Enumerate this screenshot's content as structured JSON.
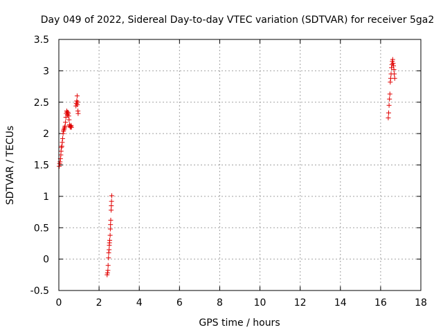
{
  "chart_data": {
    "type": "scatter",
    "title": "Day 049 of 2022, Sidereal Day-to-day VTEC variation (SDTVAR) for receiver 5ga2",
    "xlabel": "GPS time / hours",
    "ylabel": "SDTVAR / TECUs",
    "xlim": [
      0,
      18
    ],
    "ylim": [
      -0.5,
      3.5
    ],
    "xticks": [
      "0",
      "2",
      "4",
      "6",
      "8",
      "10",
      "12",
      "14",
      "16",
      "18"
    ],
    "yticks": [
      "-0.5",
      "0",
      "0.5",
      "1",
      "1.5",
      "2",
      "2.5",
      "3",
      "3.5"
    ],
    "grid": true,
    "marker": "+",
    "color": "#e00000",
    "series": [
      {
        "name": "SDTVAR",
        "x": [
          0.02,
          0.04,
          0.06,
          0.08,
          0.1,
          0.11,
          0.13,
          0.15,
          0.17,
          0.19,
          0.21,
          0.23,
          0.25,
          0.27,
          0.29,
          0.31,
          0.33,
          0.35,
          0.37,
          0.39,
          0.41,
          0.43,
          0.45,
          0.47,
          0.49,
          0.51,
          0.53,
          0.55,
          0.57,
          0.59,
          0.61,
          0.63,
          0.85,
          0.87,
          0.89,
          0.91,
          0.92,
          0.93,
          0.95,
          0.96,
          2.4,
          2.42,
          2.44,
          2.45,
          2.47,
          2.48,
          2.5,
          2.51,
          2.52,
          2.53,
          2.55,
          2.56,
          2.57,
          2.58,
          2.6,
          2.61,
          2.62,
          2.63,
          16.38,
          16.4,
          16.42,
          16.44,
          16.46,
          16.48,
          16.5,
          16.52,
          16.54,
          16.56,
          16.58,
          16.6,
          16.62,
          16.64,
          16.66,
          16.68,
          16.7
        ],
        "y": [
          1.48,
          1.52,
          1.55,
          1.6,
          1.66,
          1.72,
          1.78,
          1.8,
          1.86,
          1.92,
          2.0,
          2.04,
          2.06,
          2.08,
          2.1,
          2.12,
          2.18,
          2.26,
          2.32,
          2.36,
          2.34,
          2.3,
          2.34,
          2.32,
          2.28,
          2.22,
          2.14,
          2.12,
          2.1,
          2.11,
          2.13,
          2.1,
          2.44,
          2.48,
          2.52,
          2.6,
          2.46,
          2.5,
          2.36,
          2.32,
          -0.25,
          -0.22,
          -0.18,
          -0.1,
          0.02,
          0.1,
          0.15,
          0.22,
          0.26,
          0.3,
          0.38,
          0.48,
          0.55,
          0.62,
          0.78,
          0.85,
          0.92,
          1.01,
          2.25,
          2.33,
          2.45,
          2.55,
          2.63,
          2.82,
          2.88,
          2.95,
          3.05,
          3.1,
          3.15,
          3.18,
          3.12,
          3.08,
          3.02,
          2.95,
          2.88
        ]
      }
    ]
  }
}
